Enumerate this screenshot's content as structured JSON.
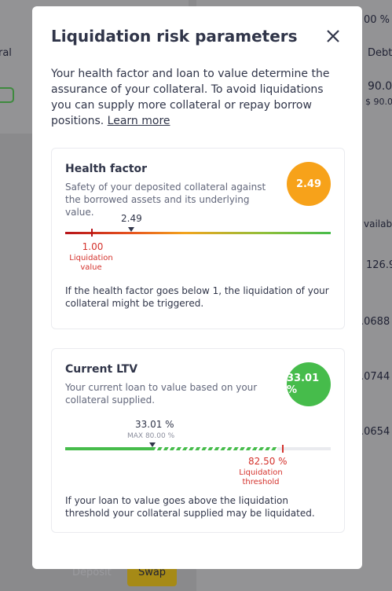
{
  "background": {
    "top_right_value": "00 %",
    "left_label": "ral",
    "debt_header": "Debt",
    "debt_amount": "90.0",
    "debt_usd": "$ 90.0",
    "available_header": "vailable",
    "rows": [
      "126.9",
      ".0688",
      ".0744",
      ".0654"
    ],
    "deposit_button": "Deposit",
    "swap_button": "Swap"
  },
  "modal": {
    "title": "Liquidation risk parameters",
    "intro": "Your health factor and loan to value determine the assurance of your collateral. To avoid liquidations you can supply more collateral or repay borrow positions.",
    "learn_more": "Learn more",
    "health_factor": {
      "title": "Health factor",
      "description": "Safety of your deposited collateral against the borrowed assets and its underlying value.",
      "badge": "2.49",
      "marker_label": "2.49",
      "threshold_value": "1.00",
      "threshold_label": "Liquidation value",
      "note": "If the health factor goes below 1, the liquidation of your collateral might be triggered."
    },
    "current_ltv": {
      "title": "Current LTV",
      "description": "Your current loan to value based on your collateral supplied.",
      "badge": "33.01 %",
      "marker_label": "33.01 %",
      "max_label": "MAX 80.00 %",
      "threshold_value": "82.50 %",
      "threshold_label": "Liquidation threshold",
      "note": "If your loan to value goes above the liquidation threshold your collateral supplied may be liquidated."
    }
  }
}
